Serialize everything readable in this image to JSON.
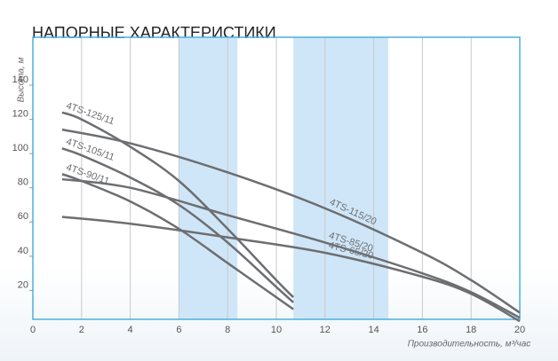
{
  "chart_data": {
    "type": "line",
    "title": "НАПОРНЫЕ ХАРАКТЕРИСТИКИ",
    "y_label": "Высота, м",
    "x_label": "Производительность, м³/час",
    "xlim": [
      0,
      20
    ],
    "ylim": [
      0,
      168
    ],
    "xticks": [
      0,
      2,
      4,
      6,
      8,
      10,
      12,
      14,
      16,
      18,
      20
    ],
    "yticks": [
      20,
      40,
      60,
      80,
      100,
      120,
      140
    ],
    "grid": true,
    "bands": [
      [
        6,
        8.4
      ],
      [
        10.7,
        14.6
      ]
    ],
    "band_color": "#cfe6f8",
    "series": [
      {
        "name": "4TS-125/11",
        "color": "#6d6e71",
        "x": [
          1.2,
          2,
          4,
          6,
          8,
          10,
          10.7
        ],
        "values": [
          124,
          120,
          104,
          84,
          56,
          26,
          16
        ]
      },
      {
        "name": "4TS-105/11",
        "color": "#6d6e71",
        "x": [
          1.2,
          2,
          4,
          6,
          8,
          10,
          10.7
        ],
        "values": [
          103,
          99,
          86,
          70,
          48,
          22,
          13
        ]
      },
      {
        "name": "4TS-90/11",
        "color": "#6d6e71",
        "x": [
          1.2,
          2,
          4,
          6,
          8,
          10,
          10.7
        ],
        "values": [
          88,
          84,
          72,
          56,
          36,
          16,
          9
        ]
      },
      {
        "name": "4TS-115/20",
        "color": "#6d6e71",
        "x": [
          1.2,
          4,
          8,
          12,
          16,
          18,
          20
        ],
        "values": [
          114,
          106,
          89,
          68,
          42,
          26,
          7
        ]
      },
      {
        "name": "4TS-85/20",
        "color": "#6d6e71",
        "x": [
          1.2,
          4,
          8,
          12,
          16,
          18,
          20
        ],
        "values": [
          85,
          80,
          64,
          48,
          30,
          19,
          4
        ]
      },
      {
        "name": "4TS-65/20",
        "color": "#6d6e71",
        "x": [
          1.2,
          4,
          8,
          12,
          16,
          18,
          20
        ],
        "values": [
          63,
          59,
          51,
          42,
          28,
          18,
          2
        ]
      }
    ]
  }
}
